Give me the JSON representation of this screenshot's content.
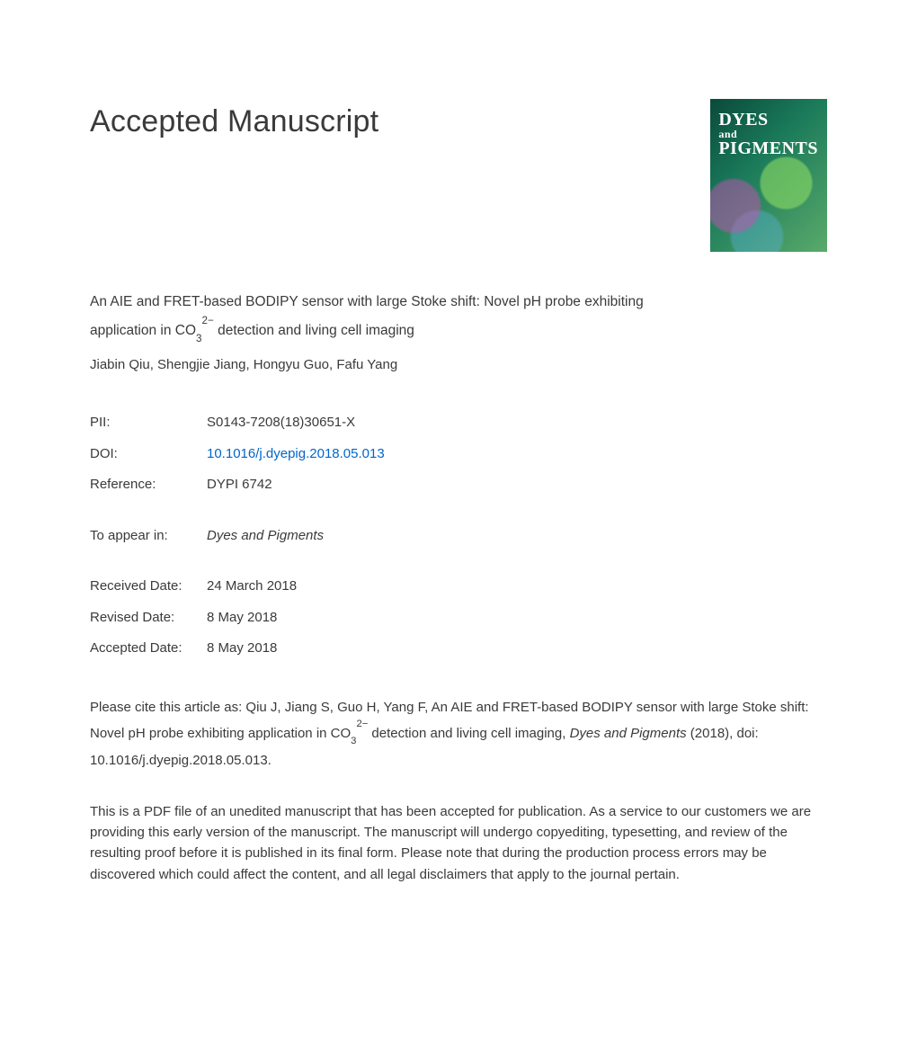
{
  "heading": "Accepted Manuscript",
  "cover": {
    "line1": "DYES",
    "line_and": "and",
    "line2": "PIGMENTS",
    "bg_gradient": [
      "#0a4a3a",
      "#1a7a5a",
      "#5aaa6a"
    ]
  },
  "title_pre": "An AIE and FRET-based BODIPY sensor with large Stoke shift: Novel pH probe exhibiting application in CO",
  "title_sub": "3",
  "title_sup": "2−",
  "title_post": " detection and living cell imaging",
  "authors": "Jiabin Qiu, Shengjie Jiang, Hongyu Guo, Fafu Yang",
  "meta": {
    "pii_label": "PII:",
    "pii_value": "S0143-7208(18)30651-X",
    "doi_label": "DOI:",
    "doi_value": "10.1016/j.dyepig.2018.05.013",
    "ref_label": "Reference:",
    "ref_value": "DYPI 6742",
    "appear_label": "To appear in:",
    "appear_value": "Dyes and Pigments"
  },
  "dates": {
    "received_label": "Received Date:",
    "received_value": "24 March 2018",
    "revised_label": "Revised Date:",
    "revised_value": "8 May 2018",
    "accepted_label": "Accepted Date:",
    "accepted_value": "8 May 2018"
  },
  "citation": {
    "pre": "Please cite this article as: Qiu J, Jiang S, Guo H, Yang F, An AIE and FRET-based BODIPY sensor with large Stoke shift: Novel pH probe exhibiting application in CO",
    "sub": "3",
    "sup": "2−",
    "mid": " detection and living cell imaging, ",
    "journal": "Dyes and Pigments",
    "post": " (2018), doi: 10.1016/j.dyepig.2018.05.013."
  },
  "disclaimer": "This is a PDF file of an unedited manuscript that has been accepted for publication. As a service to our customers we are providing this early version of the manuscript. The manuscript will undergo copyediting, typesetting, and review of the resulting proof before it is published in its final form. Please note that during the production process errors may be discovered which could affect the content, and all legal disclaimers that apply to the journal pertain.",
  "colors": {
    "text": "#3a3a3a",
    "link": "#0066cc",
    "background": "#ffffff"
  },
  "typography": {
    "heading_fontsize": 34,
    "body_fontsize": 15,
    "title_fontsize": 15.5,
    "font_family": "Arial, Helvetica, sans-serif"
  }
}
